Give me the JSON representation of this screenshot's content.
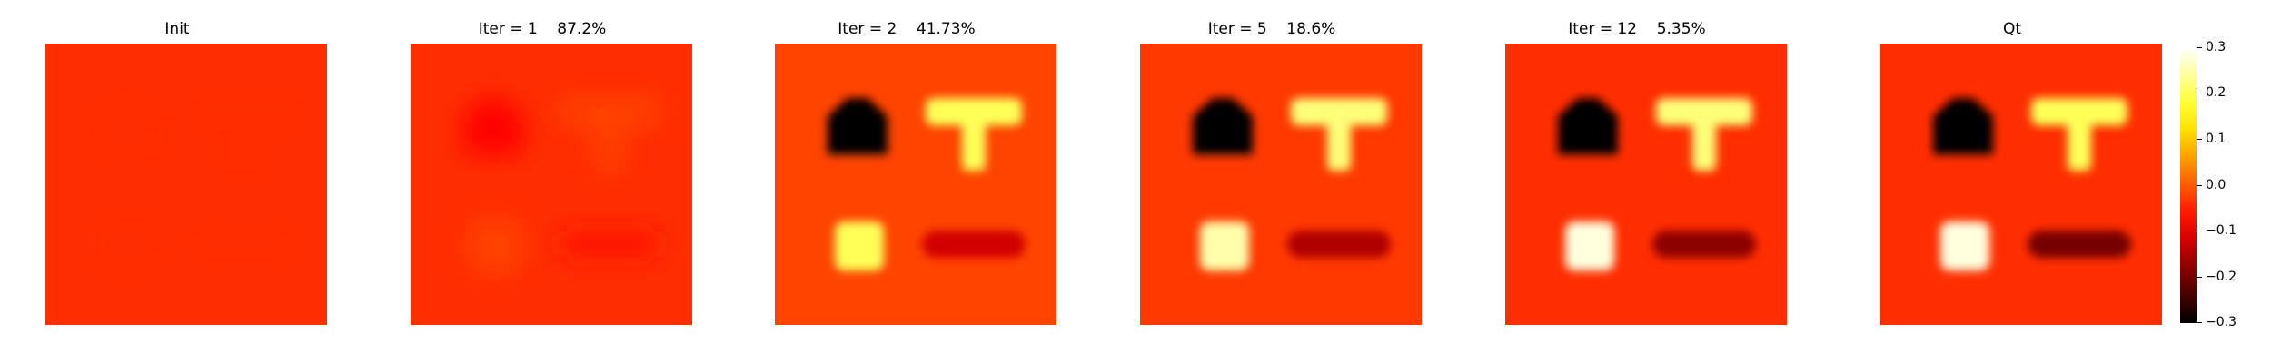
{
  "panels": [
    {
      "title": "Init"
    },
    {
      "title": "Iter = 1    87.2%"
    },
    {
      "title": "Iter = 2    41.73%"
    },
    {
      "title": "Iter = 5    18.6%"
    },
    {
      "title": "Iter = 12    5.35%"
    },
    {
      "title": "Qt"
    }
  ],
  "colorbar": {
    "colormap": "hot",
    "ticks": [
      "0.3",
      "0.2",
      "0.1",
      "0.0",
      "−0.1",
      "−0.2",
      "−0.3"
    ]
  },
  "chart_data": {
    "type": "heatmap",
    "colormap": "hot",
    "vmin": -0.3,
    "vmax": 0.3,
    "panels": [
      {
        "title": "Init",
        "background": -0.04,
        "house": -0.04,
        "t_shape": -0.04,
        "square": -0.04,
        "bar": -0.04
      },
      {
        "title": "Iter = 1    87.2%",
        "background": -0.04,
        "house": -0.08,
        "t_shape": -0.02,
        "square": -0.02,
        "bar": -0.06
      },
      {
        "title": "Iter = 2    41.73%",
        "background": -0.02,
        "house": -0.3,
        "t_shape": 0.2,
        "square": 0.2,
        "bar": -0.12
      },
      {
        "title": "Iter = 5    18.6%",
        "background": -0.03,
        "house": -0.3,
        "t_shape": 0.22,
        "square": 0.25,
        "bar": -0.15
      },
      {
        "title": "Iter = 12    5.35%",
        "background": -0.04,
        "house": -0.3,
        "t_shape": 0.22,
        "square": 0.28,
        "bar": -0.18
      },
      {
        "title": "Qt",
        "background": -0.04,
        "house": -0.3,
        "t_shape": 0.2,
        "square": 0.28,
        "bar": -0.2
      }
    ]
  }
}
